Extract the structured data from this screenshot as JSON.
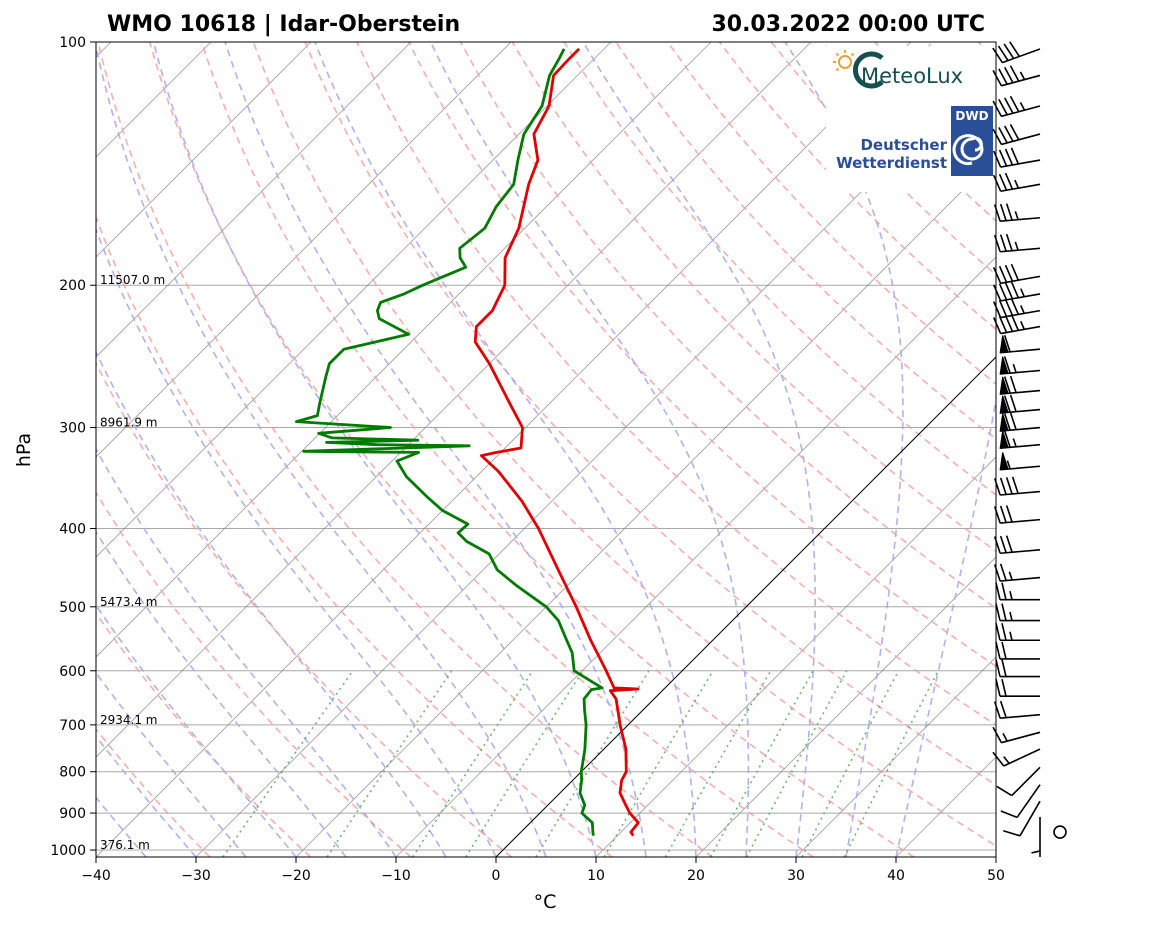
{
  "chart_data": {
    "type": "skew-t",
    "title_left": "WMO 10618 | Idar-Oberstein",
    "title_right": "30.03.2022 00:00 UTC",
    "xlabel": "°C",
    "ylabel": "hPa",
    "xlim": [
      -40,
      50
    ],
    "ylim": [
      1020,
      100
    ],
    "log_pressure": true,
    "grid": true,
    "x_ticks": [
      -40,
      -30,
      -20,
      -10,
      0,
      10,
      20,
      30,
      40,
      50
    ],
    "x_tick_labels": [
      "−40",
      "−30",
      "−20",
      "−10",
      "0",
      "10",
      "20",
      "30",
      "40",
      "50"
    ],
    "y_ticks": [
      100,
      200,
      300,
      400,
      500,
      600,
      700,
      800,
      900,
      1000
    ],
    "y_tick_labels": [
      "100",
      "200",
      "300",
      "400",
      "500",
      "600",
      "700",
      "800",
      "900",
      "1000"
    ],
    "height_labels": [
      {
        "p": 200,
        "text": "11507.0 m"
      },
      {
        "p": 300,
        "text": "8961.9 m"
      },
      {
        "p": 500,
        "text": "5473.4 m"
      },
      {
        "p": 700,
        "text": "2934.1 m"
      },
      {
        "p": 1000,
        "text": "376.1 m"
      }
    ],
    "colors": {
      "temperature": "#e00000",
      "dewpoint": "#007a00",
      "dry_adiabat": "#f4a0a0",
      "moist_adiabat": "#a8a8ee",
      "mixing_ratio": "#55aa55",
      "isotherm": "#7a7a7a",
      "zero_isotherm": "#000000"
    },
    "series": [
      {
        "kind": "temperature",
        "points": [
          [
            960,
            11.6
          ],
          [
            950,
            11.0
          ],
          [
            925,
            10.8
          ],
          [
            900,
            9.0
          ],
          [
            880,
            7.8
          ],
          [
            850,
            6.0
          ],
          [
            820,
            4.9
          ],
          [
            800,
            4.5
          ],
          [
            750,
            2.2
          ],
          [
            700,
            -0.8
          ],
          [
            650,
            -3.8
          ],
          [
            635,
            -5.2
          ],
          [
            632,
            -2.6
          ],
          [
            630,
            -5.1
          ],
          [
            600,
            -7.6
          ],
          [
            550,
            -12.2
          ],
          [
            500,
            -17.0
          ],
          [
            450,
            -22.5
          ],
          [
            400,
            -28.6
          ],
          [
            370,
            -33.0
          ],
          [
            340,
            -38.3
          ],
          [
            325,
            -41.6
          ],
          [
            322,
            -40.4
          ],
          [
            318,
            -38.4
          ],
          [
            300,
            -40.3
          ],
          [
            280,
            -44.0
          ],
          [
            250,
            -50.0
          ],
          [
            235,
            -53.6
          ],
          [
            225,
            -55.0
          ],
          [
            215,
            -55.0
          ],
          [
            200,
            -56.3
          ],
          [
            185,
            -59.0
          ],
          [
            170,
            -60.6
          ],
          [
            150,
            -64.0
          ],
          [
            140,
            -65.5
          ],
          [
            130,
            -68.5
          ],
          [
            120,
            -69.8
          ],
          [
            110,
            -72.4
          ],
          [
            105,
            -72.5
          ],
          [
            102,
            -72.5
          ]
        ]
      },
      {
        "kind": "dewpoint",
        "points": [
          [
            960,
            7.6
          ],
          [
            950,
            7.2
          ],
          [
            925,
            6.2
          ],
          [
            900,
            4.2
          ],
          [
            880,
            3.7
          ],
          [
            850,
            2.0
          ],
          [
            820,
            0.9
          ],
          [
            800,
            0.0
          ],
          [
            750,
            -1.9
          ],
          [
            700,
            -4.2
          ],
          [
            670,
            -5.9
          ],
          [
            650,
            -7.0
          ],
          [
            633,
            -7.2
          ],
          [
            630,
            -6.3
          ],
          [
            600,
            -10.8
          ],
          [
            570,
            -12.8
          ],
          [
            550,
            -14.6
          ],
          [
            520,
            -17.4
          ],
          [
            500,
            -20.0
          ],
          [
            470,
            -25.2
          ],
          [
            450,
            -28.6
          ],
          [
            430,
            -31.0
          ],
          [
            415,
            -34.5
          ],
          [
            405,
            -36.2
          ],
          [
            395,
            -36.1
          ],
          [
            380,
            -40.0
          ],
          [
            365,
            -43.0
          ],
          [
            345,
            -47.0
          ],
          [
            330,
            -49.5
          ],
          [
            322,
            -48.2
          ],
          [
            321,
            -59.8
          ],
          [
            316,
            -43.8
          ],
          [
            315,
            -53.1
          ],
          [
            313,
            -58.4
          ],
          [
            311,
            -49.5
          ],
          [
            309,
            -58.3
          ],
          [
            305,
            -60.1
          ],
          [
            300,
            -53.5
          ],
          [
            295,
            -63.5
          ],
          [
            290,
            -62.0
          ],
          [
            280,
            -63.0
          ],
          [
            260,
            -65.0
          ],
          [
            250,
            -66.0
          ],
          [
            240,
            -66.0
          ],
          [
            230,
            -61.0
          ],
          [
            220,
            -65.5
          ],
          [
            215,
            -66.5
          ],
          [
            210,
            -67.0
          ],
          [
            205,
            -65.5
          ],
          [
            200,
            -64.5
          ],
          [
            190,
            -62.0
          ],
          [
            185,
            -63.5
          ],
          [
            180,
            -64.5
          ],
          [
            170,
            -64.0
          ],
          [
            160,
            -65.0
          ],
          [
            150,
            -65.5
          ],
          [
            140,
            -67.5
          ],
          [
            130,
            -69.5
          ],
          [
            120,
            -70.5
          ],
          [
            110,
            -72.8
          ],
          [
            105,
            -73.5
          ],
          [
            102,
            -74.0
          ]
        ]
      }
    ],
    "wind_barbs": [
      {
        "p": 102,
        "dir": 250,
        "spd": 40
      },
      {
        "p": 110,
        "dir": 255,
        "spd": 45
      },
      {
        "p": 120,
        "dir": 255,
        "spd": 45
      },
      {
        "p": 130,
        "dir": 255,
        "spd": 40
      },
      {
        "p": 140,
        "dir": 260,
        "spd": 40
      },
      {
        "p": 150,
        "dir": 260,
        "spd": 35
      },
      {
        "p": 165,
        "dir": 265,
        "spd": 35
      },
      {
        "p": 180,
        "dir": 265,
        "spd": 35
      },
      {
        "p": 195,
        "dir": 260,
        "spd": 40
      },
      {
        "p": 205,
        "dir": 260,
        "spd": 45
      },
      {
        "p": 215,
        "dir": 260,
        "spd": 45
      },
      {
        "p": 225,
        "dir": 260,
        "spd": 45
      },
      {
        "p": 240,
        "dir": 265,
        "spd": 60
      },
      {
        "p": 255,
        "dir": 265,
        "spd": 65
      },
      {
        "p": 270,
        "dir": 265,
        "spd": 70
      },
      {
        "p": 285,
        "dir": 265,
        "spd": 70
      },
      {
        "p": 300,
        "dir": 265,
        "spd": 70
      },
      {
        "p": 315,
        "dir": 265,
        "spd": 65
      },
      {
        "p": 335,
        "dir": 265,
        "spd": 55
      },
      {
        "p": 360,
        "dir": 265,
        "spd": 40
      },
      {
        "p": 390,
        "dir": 265,
        "spd": 30
      },
      {
        "p": 425,
        "dir": 265,
        "spd": 30
      },
      {
        "p": 460,
        "dir": 265,
        "spd": 25
      },
      {
        "p": 490,
        "dir": 270,
        "spd": 25
      },
      {
        "p": 520,
        "dir": 270,
        "spd": 25
      },
      {
        "p": 550,
        "dir": 270,
        "spd": 25
      },
      {
        "p": 580,
        "dir": 270,
        "spd": 20
      },
      {
        "p": 610,
        "dir": 270,
        "spd": 20
      },
      {
        "p": 645,
        "dir": 270,
        "spd": 20
      },
      {
        "p": 680,
        "dir": 265,
        "spd": 20
      },
      {
        "p": 715,
        "dir": 255,
        "spd": 15
      },
      {
        "p": 750,
        "dir": 245,
        "spd": 15
      },
      {
        "p": 790,
        "dir": 225,
        "spd": 10
      },
      {
        "p": 830,
        "dir": 215,
        "spd": 10
      },
      {
        "p": 870,
        "dir": 210,
        "spd": 10
      },
      {
        "p": 910,
        "dir": 180,
        "spd": 5
      },
      {
        "p": 950,
        "dir": 0,
        "spd": 0
      }
    ],
    "logos": [
      {
        "text": "MeteoLux"
      },
      {
        "line1": "Deutscher",
        "line2": "Wetterdienst",
        "badge": "DWD"
      }
    ]
  }
}
